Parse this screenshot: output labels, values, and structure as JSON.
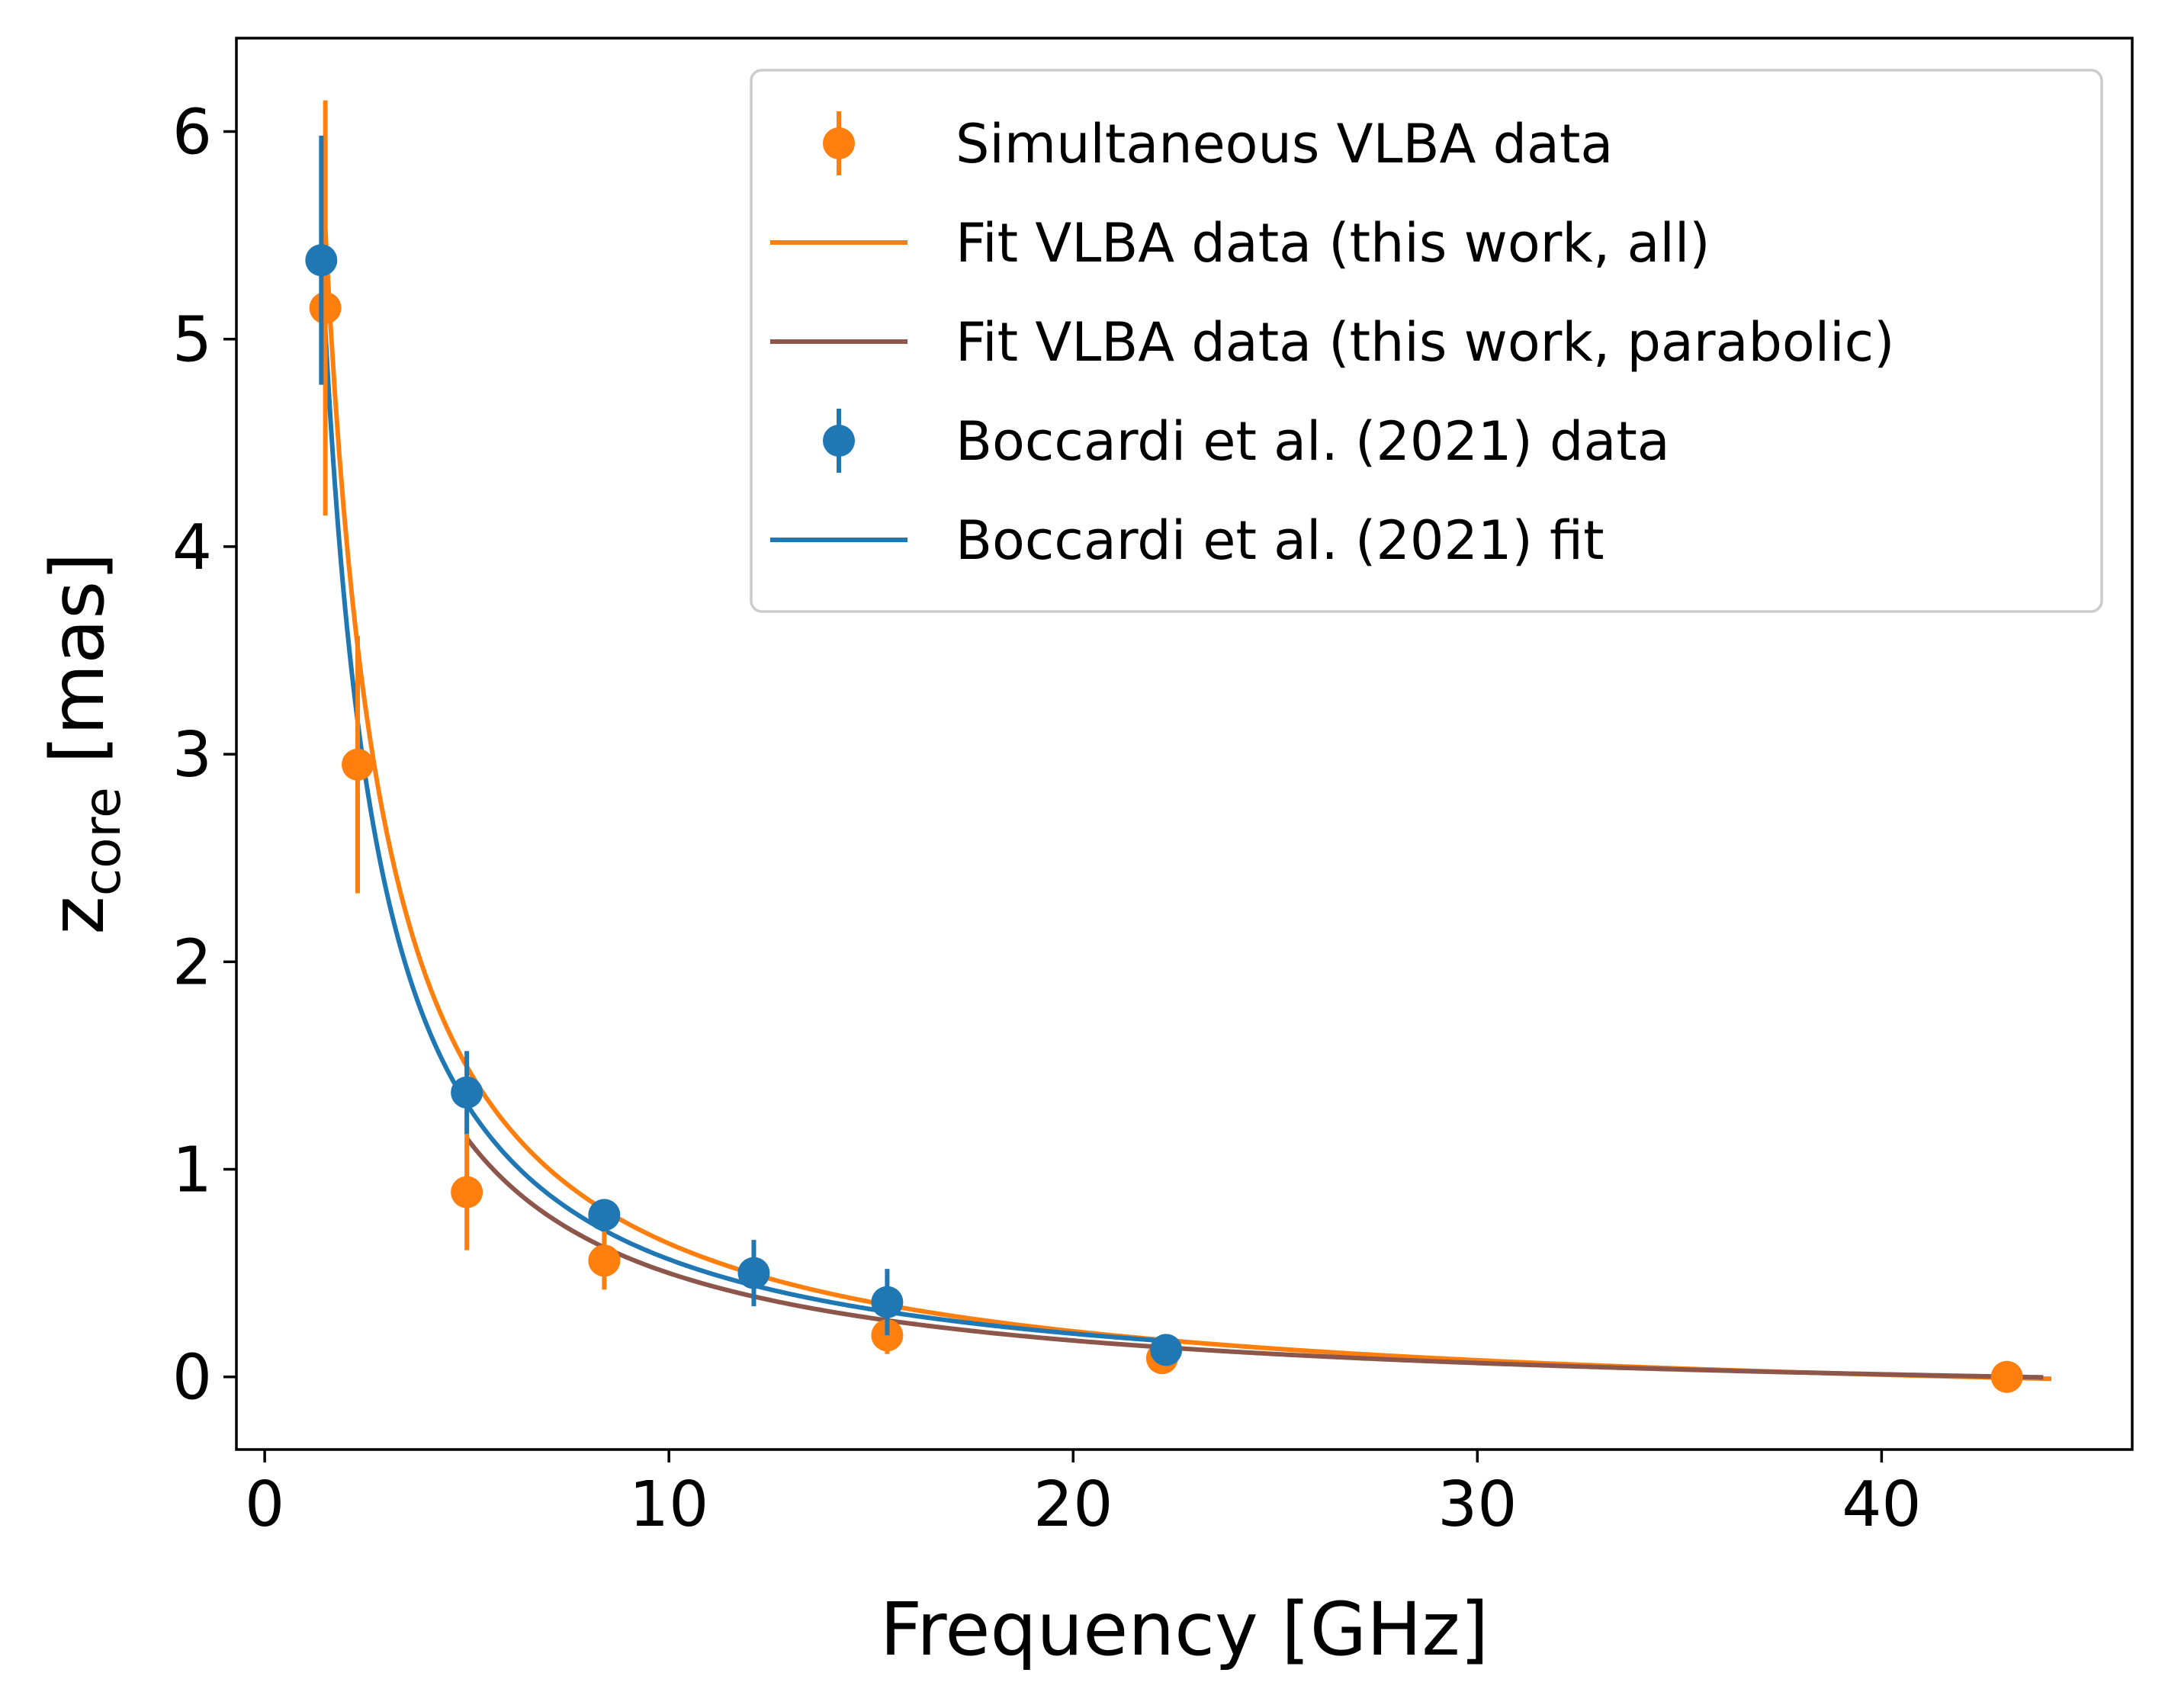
{
  "chart_data": {
    "type": "scatter",
    "xlabel": "Frequency [GHz]",
    "ylabel": "z",
    "ylabel_subscript": "core",
    "ylabel_unit": " [mas]",
    "xlim": [
      -0.7,
      46.2
    ],
    "ylim": [
      -0.35,
      6.45
    ],
    "x_ticks": [
      0,
      10,
      20,
      30,
      40
    ],
    "y_ticks": [
      0,
      1,
      2,
      3,
      4,
      5,
      6
    ],
    "grid": false,
    "legend_position": "top-right",
    "colors": {
      "orange": "#ff7f0e",
      "brown": "#8c564b",
      "blue": "#1f77b4"
    },
    "series": [
      {
        "name": "Simultaneous VLBA data",
        "kind": "errorbar",
        "color": "#ff7f0e",
        "points": [
          {
            "x": 1.5,
            "y": 5.15,
            "err": 1.0
          },
          {
            "x": 2.3,
            "y": 2.95,
            "err": 0.62
          },
          {
            "x": 5.0,
            "y": 0.89,
            "err": 0.28
          },
          {
            "x": 8.4,
            "y": 0.56,
            "err": 0.14
          },
          {
            "x": 15.4,
            "y": 0.2,
            "err": 0.09
          },
          {
            "x": 22.2,
            "y": 0.09,
            "err": 0.05
          },
          {
            "x": 43.1,
            "y": 0.0,
            "err": 0.02
          }
        ]
      },
      {
        "name": "Fit VLBA data (this work, all)",
        "kind": "curve",
        "color": "#ff7f0e",
        "model": {
          "A": 8.63,
          "k": 0.987,
          "x0": 0.0,
          "offset": -0.195
        },
        "x_range": [
          1.42,
          44.2
        ]
      },
      {
        "name": "Fit VLBA data (this work, parabolic)",
        "kind": "curve",
        "color": "#8c564b",
        "model": {
          "A": 6.5,
          "k": 1.0,
          "x0": 0.0,
          "offset": -0.15
        },
        "x_range": [
          5.0,
          44.0
        ]
      },
      {
        "name": "Boccardi et al. (2021) data",
        "kind": "errorbar",
        "color": "#1f77b4",
        "points": [
          {
            "x": 1.4,
            "y": 5.38,
            "err": 0.6
          },
          {
            "x": 5.0,
            "y": 1.37,
            "err": 0.2
          },
          {
            "x": 8.4,
            "y": 0.78,
            "err": 0.05
          },
          {
            "x": 12.1,
            "y": 0.5,
            "err": 0.16
          },
          {
            "x": 15.4,
            "y": 0.36,
            "err": 0.16
          },
          {
            "x": 22.3,
            "y": 0.13,
            "err": 0.04
          }
        ]
      },
      {
        "name": "Boccardi et al. (2021) fit",
        "kind": "curve",
        "color": "#1f77b4",
        "model": {
          "A": 7.95,
          "k": 0.94,
          "x0": 0.0,
          "offset": -0.12
        },
        "x_range": [
          1.42,
          22.3
        ]
      }
    ]
  }
}
